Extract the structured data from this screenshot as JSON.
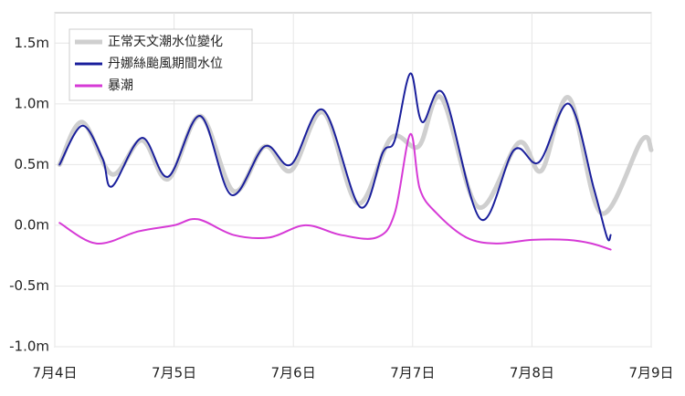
{
  "chart_data": {
    "type": "line",
    "xlim": [
      4,
      9
    ],
    "xticks": [
      {
        "value": 4,
        "label": "7月4日"
      },
      {
        "value": 5,
        "label": "7月5日"
      },
      {
        "value": 6,
        "label": "7月6日"
      },
      {
        "value": 7,
        "label": "7月7日"
      },
      {
        "value": 8,
        "label": "7月8日"
      },
      {
        "value": 9,
        "label": "7月9日"
      }
    ],
    "ylim": [
      -1.0,
      1.75
    ],
    "yticks": [
      {
        "value": 1.5,
        "label": "1.5m"
      },
      {
        "value": 1.0,
        "label": "1.0m"
      },
      {
        "value": 0.5,
        "label": "0.5m"
      },
      {
        "value": 0,
        "label": "0.0m"
      },
      {
        "value": -0.5,
        "label": "-0.5m"
      },
      {
        "value": -1.0,
        "label": "-1.0m"
      }
    ],
    "grid": true,
    "legend": "upper-left",
    "series": [
      {
        "name": "正常天文潮水位變化",
        "color": "#cfcfcf",
        "width": 5,
        "x": [
          4.04,
          4.23,
          4.48,
          4.73,
          4.95,
          5.22,
          5.5,
          5.76,
          5.98,
          6.25,
          6.54,
          6.82,
          7.05,
          7.24,
          7.55,
          7.89,
          8.08,
          8.31,
          8.58,
          8.92,
          9.0
        ],
        "values": [
          0.5,
          0.85,
          0.42,
          0.7,
          0.38,
          0.9,
          0.28,
          0.65,
          0.45,
          0.93,
          0.18,
          0.72,
          0.65,
          1.05,
          0.15,
          0.68,
          0.45,
          1.05,
          0.1,
          0.7,
          0.62
        ]
      },
      {
        "name": "丹娜絲颱風期間水位",
        "color": "#1a1f9c",
        "width": 2,
        "x": [
          4.04,
          4.23,
          4.4,
          4.48,
          4.73,
          4.95,
          5.22,
          5.48,
          5.76,
          5.98,
          6.25,
          6.56,
          6.75,
          6.85,
          6.98,
          7.08,
          7.26,
          7.57,
          7.85,
          8.06,
          8.31,
          8.52,
          8.63,
          8.66
        ],
        "values": [
          0.5,
          0.82,
          0.55,
          0.32,
          0.72,
          0.4,
          0.9,
          0.25,
          0.65,
          0.5,
          0.95,
          0.15,
          0.6,
          0.7,
          1.25,
          0.85,
          1.08,
          0.05,
          0.62,
          0.52,
          1.0,
          0.3,
          -0.1,
          -0.08
        ]
      },
      {
        "name": "暴潮",
        "color": "#d63ad6",
        "width": 2,
        "x": [
          4.04,
          4.35,
          4.7,
          5.0,
          5.2,
          5.5,
          5.8,
          6.1,
          6.4,
          6.7,
          6.85,
          6.98,
          7.06,
          7.2,
          7.45,
          7.7,
          8.0,
          8.3,
          8.5,
          8.66
        ],
        "values": [
          0.02,
          -0.15,
          -0.05,
          0.0,
          0.05,
          -0.08,
          -0.1,
          0.0,
          -0.08,
          -0.1,
          0.1,
          0.75,
          0.3,
          0.1,
          -0.1,
          -0.15,
          -0.12,
          -0.12,
          -0.15,
          -0.2
        ]
      }
    ]
  }
}
